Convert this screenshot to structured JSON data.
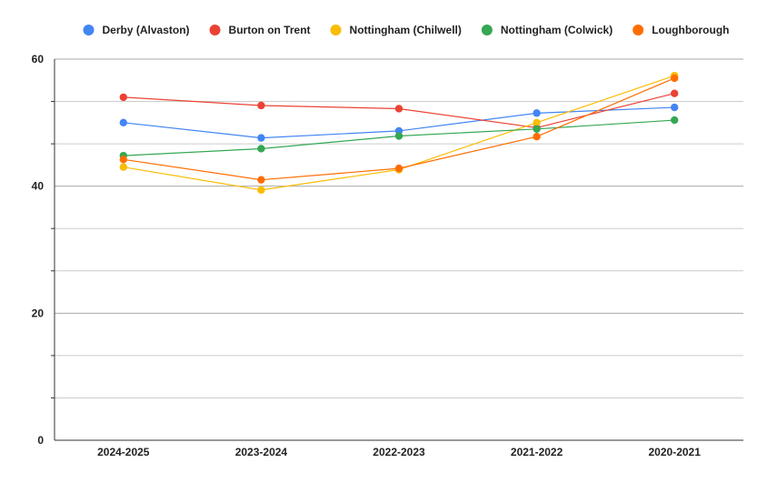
{
  "chart_data": {
    "type": "line",
    "title": "",
    "xlabel": "",
    "ylabel": "",
    "categories": [
      "2024-2025",
      "2023-2024",
      "2022-2023",
      "2021-2022",
      "2020-2021"
    ],
    "ylim": [
      0,
      60
    ],
    "yticks": [
      0,
      20,
      40,
      60
    ],
    "grid": true,
    "legend_position": "top",
    "series": [
      {
        "name": "Derby (Alvaston)",
        "color": "#4285f4",
        "values": [
          50.0,
          47.6,
          48.7,
          51.5,
          52.4
        ]
      },
      {
        "name": "Burton on Trent",
        "color": "#ea4335",
        "values": [
          54.0,
          52.7,
          52.2,
          49.2,
          54.6
        ]
      },
      {
        "name": "Nottingham (Chilwell)",
        "color": "#fbbc04",
        "values": [
          43.0,
          39.4,
          42.6,
          50.0,
          57.4
        ]
      },
      {
        "name": "Nottingham (Colwick)",
        "color": "#34a853",
        "values": [
          44.8,
          45.9,
          47.9,
          49.0,
          50.4
        ]
      },
      {
        "name": "Loughborough",
        "color": "#ff6d01",
        "values": [
          44.2,
          41.0,
          42.8,
          47.8,
          57.0
        ]
      }
    ]
  }
}
